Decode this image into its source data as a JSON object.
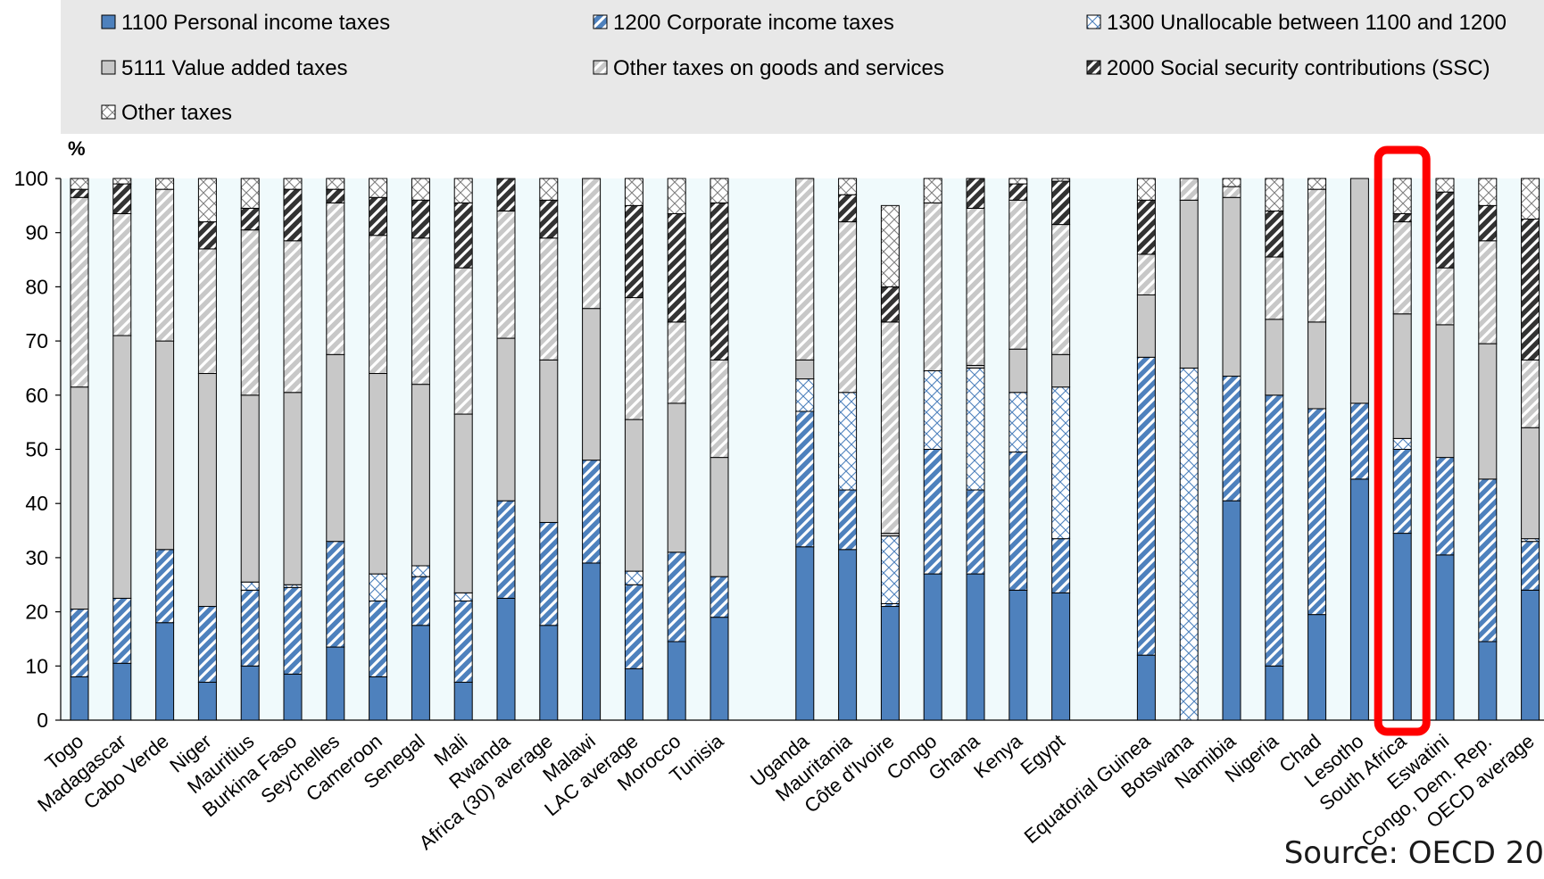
{
  "source_note": "Source: OECD 20",
  "chart_data": {
    "type": "bar",
    "stacked": true,
    "ylabel": "%",
    "ylim": [
      0,
      100
    ],
    "yticks": [
      0,
      10,
      20,
      30,
      40,
      50,
      60,
      70,
      80,
      90,
      100
    ],
    "legend_position": "top",
    "highlighted_category": "South Africa",
    "highlight_color": "#ff0000",
    "series": [
      {
        "name": "1100 Personal income taxes",
        "color": "#4e81bd",
        "pattern": "solid"
      },
      {
        "name": "1200 Corporate income taxes",
        "color": "#4e81bd",
        "pattern": "diagonal"
      },
      {
        "name": "1300 Unallocable between 1100 and 1200",
        "color": "#4e81bd",
        "pattern": "crosshatch"
      },
      {
        "name": "5111 Value added taxes",
        "color": "#c8c8c8",
        "pattern": "solid"
      },
      {
        "name": "Other taxes on goods and services",
        "color": "#c8c8c8",
        "pattern": "diagonal"
      },
      {
        "name": "2000 Social security contributions (SSC)",
        "color": "#333333",
        "pattern": "diagonal"
      },
      {
        "name": "Other taxes",
        "color": "#808080",
        "pattern": "crosshatch"
      }
    ],
    "categories": [
      "Togo",
      "Madagascar",
      "Cabo Verde",
      "Niger",
      "Mauritius",
      "Burkina Faso",
      "Seychelles",
      "Cameroon",
      "Senegal",
      "Mali",
      "Rwanda",
      "Africa (30) average",
      "Malawi",
      "LAC average",
      "Morocco",
      "Tunisia",
      "Uganda",
      "Mauritania",
      "Côte d'Ivoire",
      "Congo",
      "Ghana",
      "Kenya",
      "Egypt",
      "Equatorial Guinea",
      "Botswana",
      "Namibia",
      "Nigeria",
      "Chad",
      "Lesotho",
      "South Africa",
      "Eswatini",
      "Congo, Dem. Rep.",
      "OECD average"
    ],
    "groups": [
      16,
      7,
      10
    ],
    "values": [
      [
        8.0,
        12.5,
        0.0,
        41.0,
        35.0,
        1.5,
        2.0
      ],
      [
        10.5,
        12.0,
        0.0,
        48.5,
        22.5,
        5.5,
        1.0
      ],
      [
        18.0,
        13.5,
        0.0,
        38.5,
        28.0,
        0.0,
        2.0
      ],
      [
        7.0,
        14.0,
        0.0,
        43.0,
        23.0,
        5.0,
        8.0
      ],
      [
        10.0,
        14.0,
        1.5,
        34.5,
        30.5,
        4.0,
        5.5
      ],
      [
        8.5,
        16.0,
        0.5,
        35.5,
        28.0,
        9.5,
        2.0
      ],
      [
        13.5,
        19.5,
        0.0,
        34.5,
        28.0,
        2.5,
        2.0
      ],
      [
        8.0,
        14.0,
        5.0,
        37.0,
        25.5,
        7.0,
        3.5
      ],
      [
        17.5,
        9.0,
        2.0,
        33.5,
        27.0,
        7.0,
        4.0
      ],
      [
        7.0,
        15.0,
        1.5,
        33.0,
        27.0,
        12.0,
        4.5
      ],
      [
        22.5,
        18.0,
        0.0,
        30.0,
        23.5,
        6.0,
        0.0
      ],
      [
        17.5,
        19.0,
        0.0,
        30.0,
        22.5,
        7.0,
        4.0
      ],
      [
        29.0,
        19.0,
        0.0,
        28.0,
        24.0,
        0.0,
        0.0
      ],
      [
        9.5,
        15.5,
        2.5,
        28.0,
        22.5,
        17.0,
        5.0
      ],
      [
        14.5,
        16.5,
        0.0,
        27.5,
        15.0,
        20.0,
        6.5
      ],
      [
        19.0,
        7.5,
        0.0,
        22.0,
        18.0,
        29.0,
        4.5
      ],
      [
        32.0,
        25.0,
        6.0,
        3.5,
        33.5,
        0.0,
        0.0
      ],
      [
        31.5,
        11.0,
        18.0,
        0.0,
        31.5,
        5.0,
        3.0
      ],
      [
        21.0,
        0.5,
        12.5,
        0.5,
        39.0,
        6.5,
        15.0
      ],
      [
        27.0,
        23.0,
        14.5,
        0.0,
        31.0,
        0.0,
        4.5
      ],
      [
        27.0,
        15.5,
        22.5,
        0.5,
        29.0,
        5.5,
        0.0
      ],
      [
        24.0,
        25.5,
        11.0,
        8.0,
        27.5,
        3.0,
        1.0
      ],
      [
        23.5,
        10.0,
        28.0,
        6.0,
        24.0,
        8.0,
        0.5
      ],
      [
        12.0,
        55.0,
        0.0,
        11.5,
        7.5,
        10.0,
        4.0
      ],
      [
        0.0,
        0.0,
        65.0,
        31.0,
        4.0,
        0.0,
        0.0
      ],
      [
        40.5,
        23.0,
        0.0,
        33.0,
        2.0,
        0.0,
        1.5
      ],
      [
        10.0,
        50.0,
        0.0,
        14.0,
        11.5,
        8.5,
        6.0
      ],
      [
        19.5,
        38.0,
        0.0,
        16.0,
        24.5,
        0.0,
        2.0
      ],
      [
        44.5,
        14.0,
        0.0,
        41.5,
        0.0,
        0.0,
        0.0
      ],
      [
        34.5,
        15.5,
        2.0,
        23.0,
        17.0,
        1.5,
        6.5
      ],
      [
        30.5,
        18.0,
        0.0,
        24.5,
        10.5,
        14.0,
        2.5
      ],
      [
        14.5,
        30.0,
        0.0,
        25.0,
        19.0,
        6.5,
        5.0
      ],
      [
        24.0,
        9.0,
        0.5,
        20.5,
        12.5,
        26.0,
        7.5
      ]
    ]
  }
}
